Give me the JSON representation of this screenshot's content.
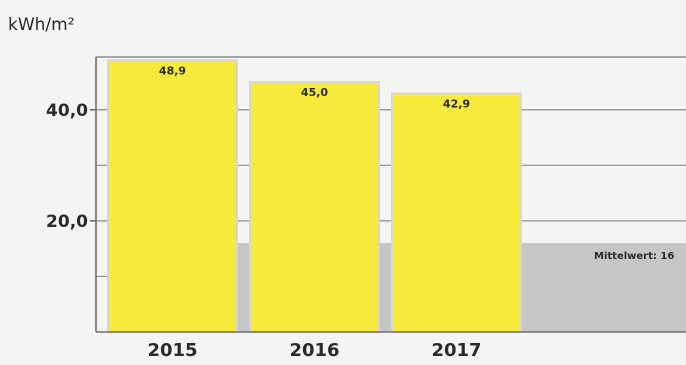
{
  "chart_data": {
    "type": "bar",
    "title": "",
    "ylabel": "kWh/m²",
    "xlabel": "",
    "categories": [
      "2015",
      "2016",
      "2017"
    ],
    "values": [
      48.9,
      45.0,
      42.9
    ],
    "value_labels": [
      "48,9",
      "45,0",
      "42,9"
    ],
    "y_ticks": [
      20.0,
      40.0
    ],
    "y_tick_labels": [
      "20,0",
      "40,0"
    ],
    "ylim": [
      0,
      49.5
    ],
    "grid": true,
    "legend": "none",
    "average": {
      "label": "Mittelwert: 16",
      "value": 16
    }
  },
  "colors": {
    "bar_fill": "#f7ea3b",
    "bar_stroke": "#d9d7c8",
    "average_band": "#c6c6c4",
    "grid": "#8c8c8c",
    "axis": "#6e6e6e",
    "text": "#2a2a2a",
    "background": "#f4f4f2"
  }
}
